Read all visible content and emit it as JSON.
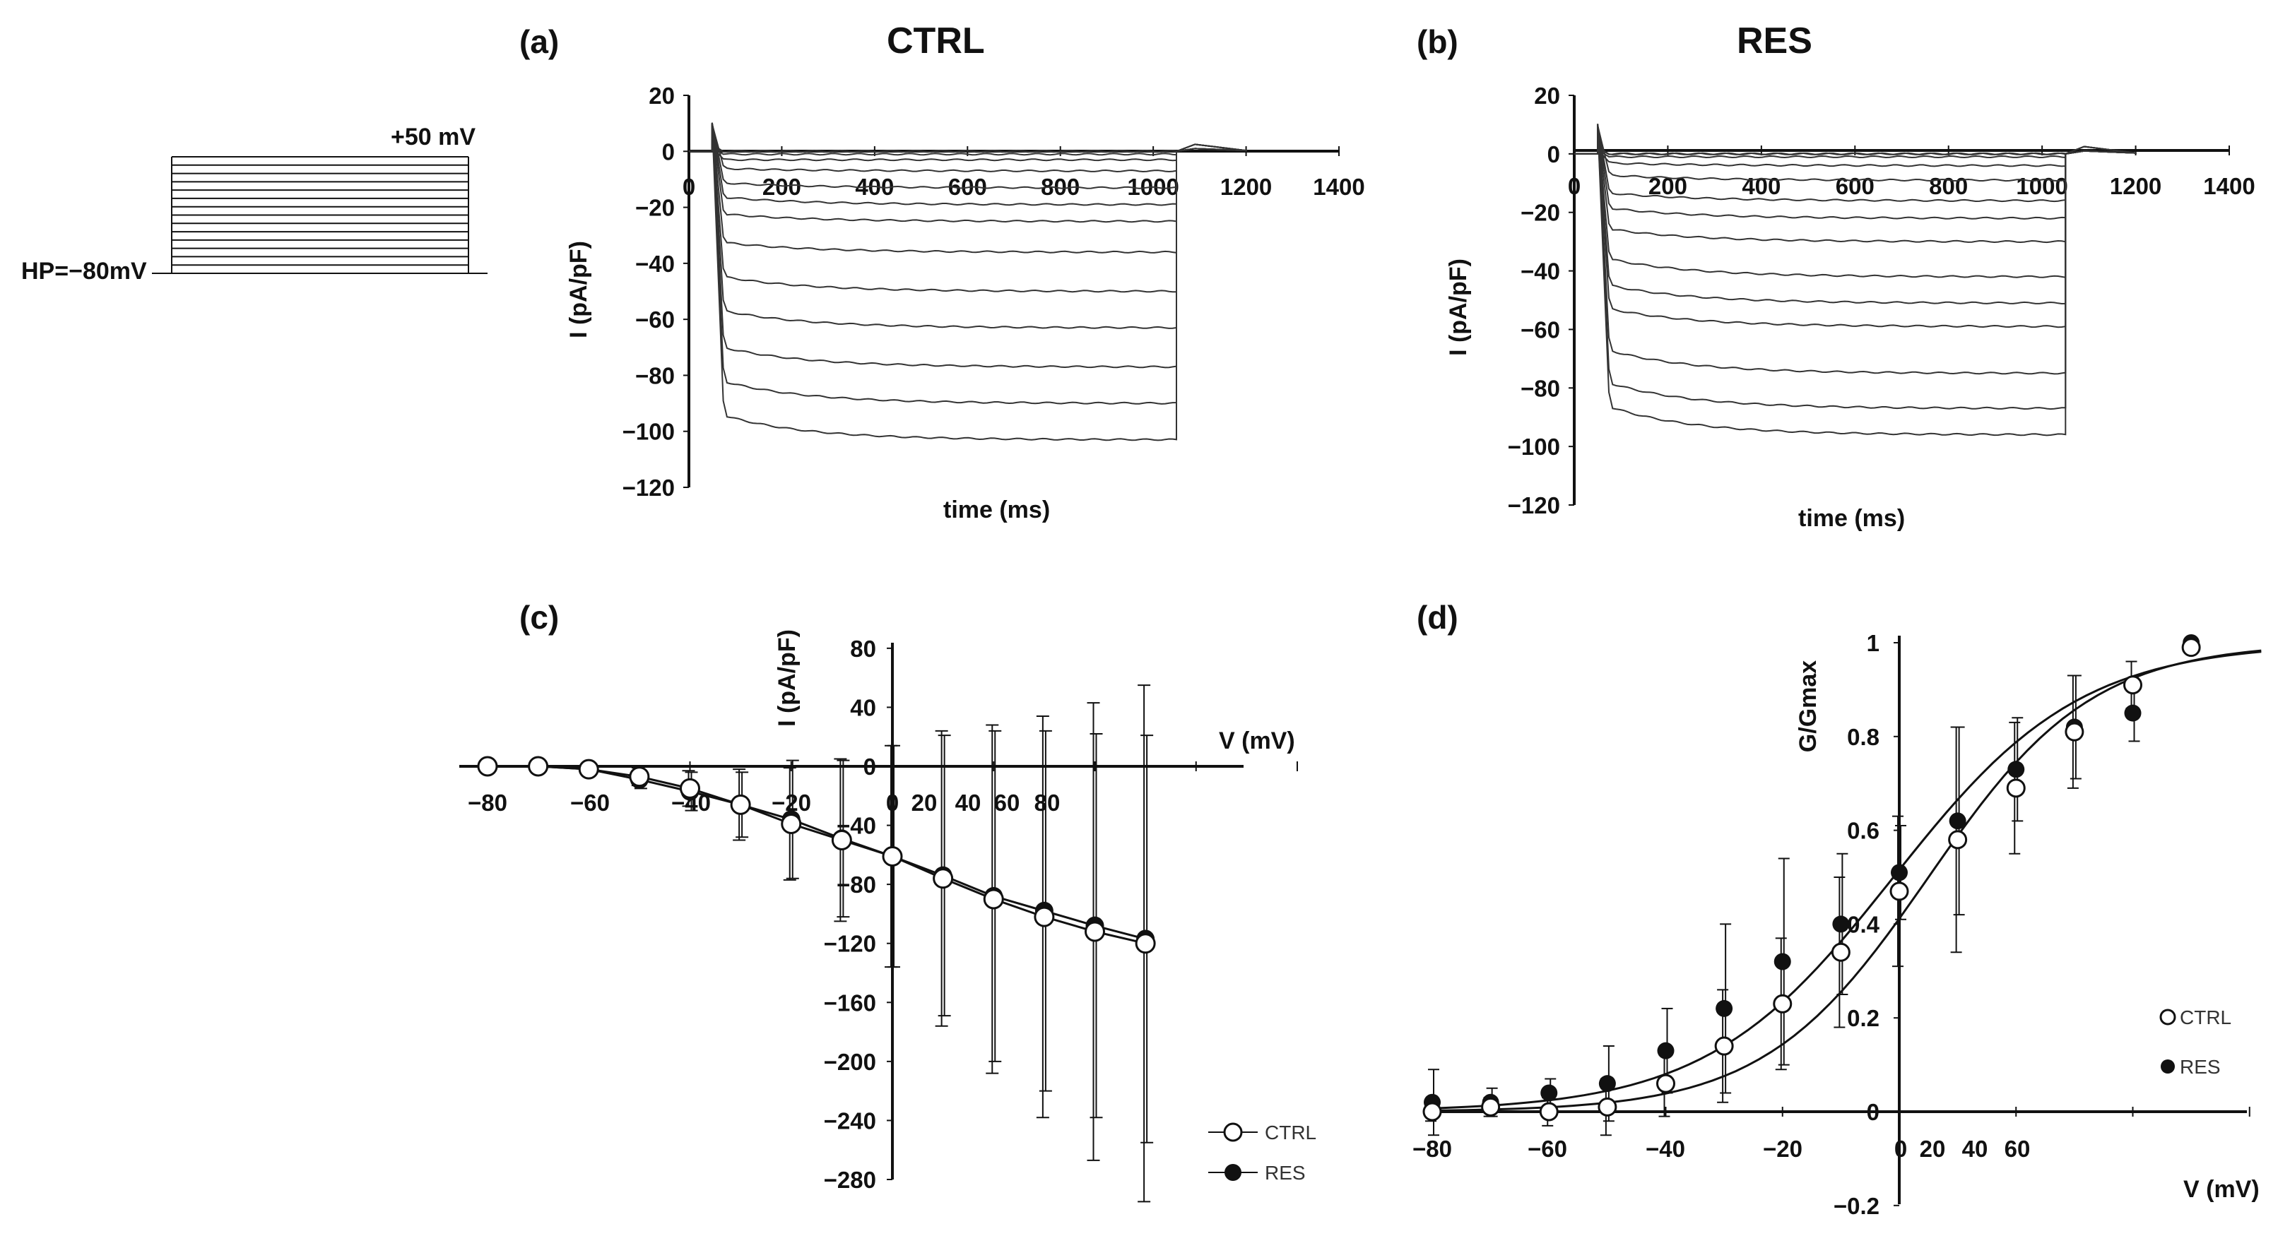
{
  "protocol": {
    "top_label": "+50 mV",
    "hp_label": "HP=−80mV",
    "steps_count": 14
  },
  "legend": {
    "ctrl": "CTRL",
    "res": "RES"
  },
  "chart_data": [
    {
      "id": "a",
      "panel": "(a)",
      "title": "CTRL",
      "type": "line",
      "xlabel": "time (ms)",
      "ylabel": "I (pA/pF)",
      "xlim": [
        0,
        1400
      ],
      "ylim": [
        -120,
        20
      ],
      "xticks": [
        "0",
        "200",
        "400",
        "600",
        "800",
        "1000",
        "1200",
        "1400"
      ],
      "yticks": [
        "20",
        "0",
        "−20",
        "−40",
        "−60",
        "−80",
        "−100",
        "−120"
      ],
      "pulse_start_ms": 50,
      "pulse_end_ms": 1050,
      "steady_currents": [
        0,
        0,
        -1,
        -3,
        -7,
        -13,
        -19,
        -25,
        -36,
        -50,
        -63,
        -77,
        -90,
        -103
      ],
      "peak_currents": [
        0,
        0,
        -1,
        -3,
        -6,
        -11,
        -16,
        -22,
        -32,
        -44,
        -56,
        -69,
        -81,
        -93
      ]
    },
    {
      "id": "b",
      "panel": "(b)",
      "title": "RES",
      "type": "line",
      "xlabel": "time (ms)",
      "ylabel": "I (pA/pF)",
      "xlim": [
        0,
        1400
      ],
      "ylim": [
        -120,
        20
      ],
      "xticks": [
        "0",
        "200",
        "400",
        "600",
        "800",
        "1000",
        "1200",
        "1400"
      ],
      "yticks": [
        "20",
        "0",
        "−20",
        "−40",
        "−60",
        "−80",
        "−100",
        "−120"
      ],
      "pulse_start_ms": 50,
      "pulse_end_ms": 1050,
      "steady_currents": [
        0,
        0,
        -1,
        -4,
        -9,
        -16,
        -22,
        -30,
        -42,
        -51,
        -59,
        -75,
        -87,
        -96
      ],
      "peak_currents": [
        0,
        0,
        -1,
        -3,
        -7,
        -13,
        -18,
        -25,
        -35,
        -44,
        -52,
        -66,
        -77,
        -85
      ]
    },
    {
      "id": "c",
      "panel": "(c)",
      "type": "line",
      "xlabel": "V (mV)",
      "ylabel": "I (pA/pF)",
      "xlim": [
        -80,
        80
      ],
      "ylim": [
        -280,
        80
      ],
      "xticks": [
        "−80",
        "−60",
        "−40",
        "−20",
        "0",
        "20",
        "40",
        "60",
        "80"
      ],
      "yticks": [
        "80",
        "40",
        "0",
        "−40",
        "−80",
        "−120",
        "−160",
        "−200",
        "−240",
        "−280"
      ],
      "x": [
        -80,
        -70,
        -60,
        -50,
        -40,
        -30,
        -20,
        -10,
        0,
        10,
        20,
        30,
        40,
        50
      ],
      "series": [
        {
          "name": "CTRL",
          "marker": "open",
          "values": [
            0,
            0,
            -2,
            -7,
            -15,
            -26,
            -39,
            -50,
            -61,
            -76,
            -90,
            -102,
            -112,
            -120
          ],
          "errors": [
            2,
            2,
            3,
            6,
            12,
            24,
            38,
            55,
            75,
            100,
            118,
            136,
            155,
            175
          ]
        },
        {
          "name": "RES",
          "marker": "filled",
          "values": [
            0,
            0,
            -2,
            -9,
            -17,
            -26,
            -36,
            -49,
            -61,
            -74,
            -88,
            -98,
            -108,
            -117
          ],
          "errors": [
            2,
            2,
            3,
            6,
            13,
            22,
            40,
            53,
            75,
            95,
            112,
            122,
            130,
            138
          ]
        }
      ]
    },
    {
      "id": "d",
      "panel": "(d)",
      "type": "scatter",
      "xlabel": "V (mV)",
      "ylabel": "G/Gmax",
      "xlim": [
        -80,
        60
      ],
      "ylim": [
        -0.2,
        1
      ],
      "xticks": [
        "−80",
        "−60",
        "−40",
        "−20",
        "0",
        "20",
        "40",
        "60"
      ],
      "yticks": [
        "1",
        "0.8",
        "0.6",
        "0.4",
        "0.2",
        "0",
        "−0.2"
      ],
      "x": [
        -80,
        -70,
        -60,
        -50,
        -40,
        -30,
        -20,
        -10,
        0,
        10,
        20,
        30,
        40,
        50
      ],
      "series": [
        {
          "name": "CTRL",
          "marker": "open",
          "values": [
            0.0,
            0.01,
            0.0,
            0.01,
            0.06,
            0.14,
            0.23,
            0.34,
            0.47,
            0.58,
            0.69,
            0.81,
            0.91,
            0.99
          ],
          "errors": [
            0.02,
            0.02,
            0.03,
            0.06,
            0.07,
            0.12,
            0.14,
            0.16,
            0.16,
            0.24,
            0.14,
            0.12,
            0.05,
            0.0
          ],
          "fit": {
            "v_half": 5,
            "k": 14
          }
        },
        {
          "name": "RES",
          "marker": "filled",
          "values": [
            0.02,
            0.02,
            0.04,
            0.06,
            0.13,
            0.22,
            0.32,
            0.4,
            0.51,
            0.62,
            0.73,
            0.82,
            0.85,
            1.0
          ],
          "errors": [
            0.07,
            0.03,
            0.03,
            0.08,
            0.09,
            0.18,
            0.22,
            0.15,
            0.1,
            0.2,
            0.11,
            0.11,
            0.06,
            0.0
          ],
          "fit": {
            "v_half": -1,
            "k": 16
          }
        }
      ]
    }
  ]
}
